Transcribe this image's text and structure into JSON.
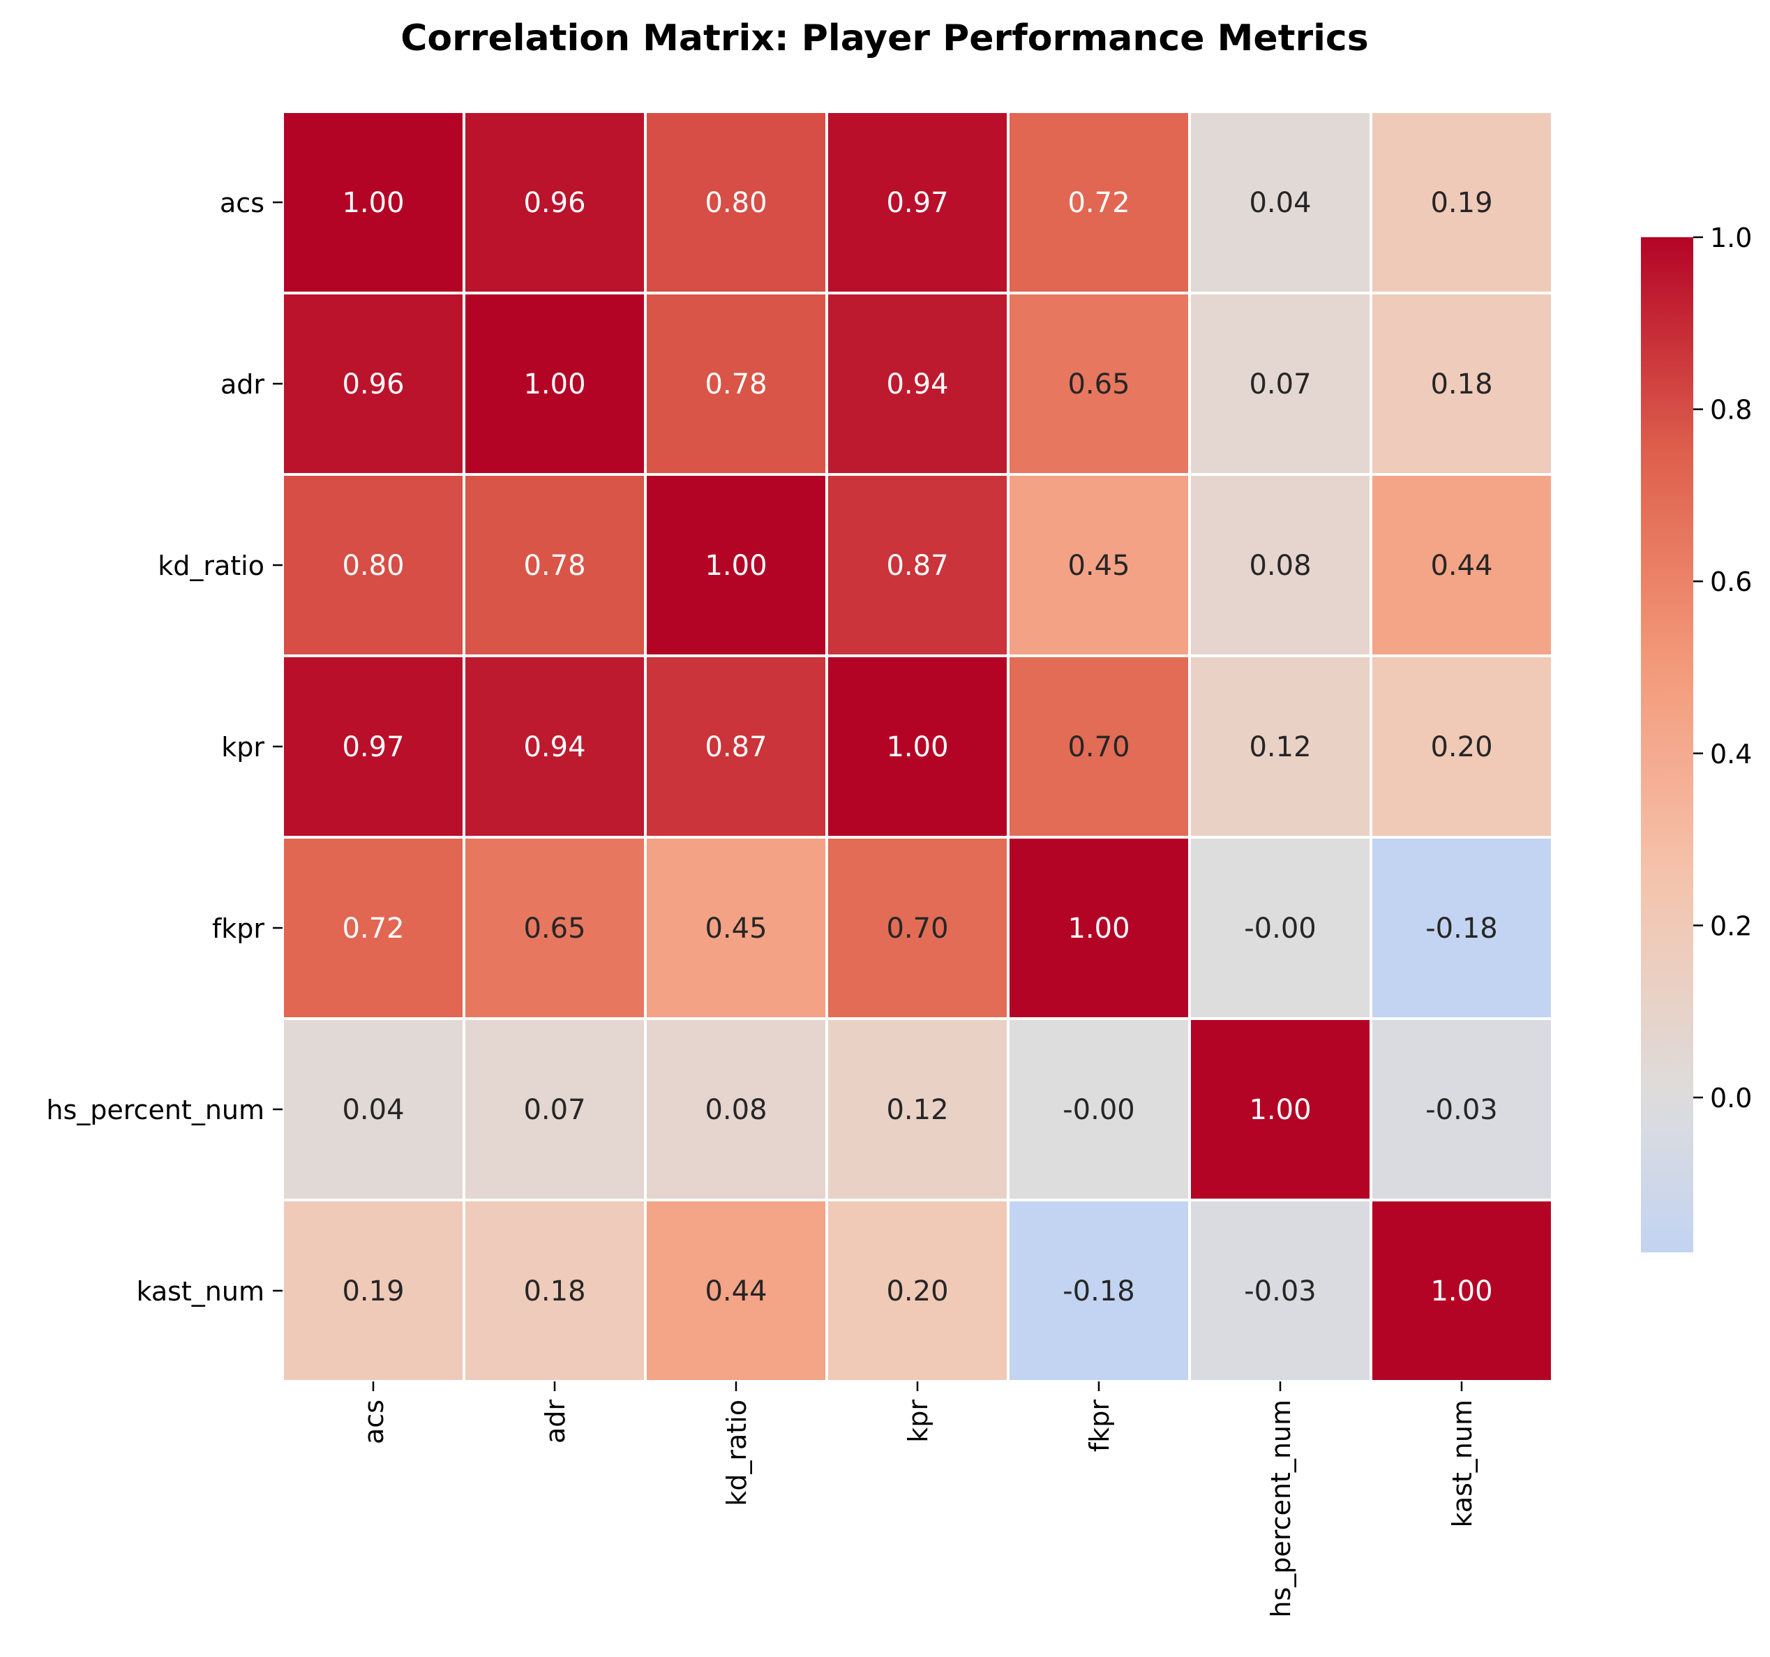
{
  "chart_data": {
    "type": "heatmap",
    "title": "Correlation Matrix: Player Performance Metrics",
    "xlabel": "",
    "ylabel": "",
    "row_labels": [
      "acs",
      "adr",
      "kd_ratio",
      "kpr",
      "fkpr",
      "hs_percent_num",
      "kast_num"
    ],
    "col_labels": [
      "acs",
      "adr",
      "kd_ratio",
      "kpr",
      "fkpr",
      "hs_percent_num",
      "kast_num"
    ],
    "values": [
      [
        1.0,
        0.96,
        0.8,
        0.97,
        0.72,
        0.04,
        0.19
      ],
      [
        0.96,
        1.0,
        0.78,
        0.94,
        0.65,
        0.07,
        0.18
      ],
      [
        0.8,
        0.78,
        1.0,
        0.87,
        0.45,
        0.08,
        0.44
      ],
      [
        0.97,
        0.94,
        0.87,
        1.0,
        0.7,
        0.12,
        0.2
      ],
      [
        0.72,
        0.65,
        0.45,
        0.7,
        1.0,
        -0.0,
        -0.18
      ],
      [
        0.04,
        0.07,
        0.08,
        0.12,
        -0.0,
        1.0,
        -0.03
      ],
      [
        0.19,
        0.18,
        0.44,
        0.2,
        -0.18,
        -0.03,
        1.0
      ]
    ],
    "value_format": "2 decimals",
    "colormap": "coolwarm",
    "center": 0,
    "colorbar": {
      "range": [
        -0.18,
        1.0
      ],
      "ticks": [
        0.0,
        0.2,
        0.4,
        0.6,
        0.8,
        1.0
      ],
      "tick_labels": [
        "0.0",
        "0.2",
        "0.4",
        "0.6",
        "0.8",
        "1.0"
      ],
      "placement": "right"
    }
  }
}
